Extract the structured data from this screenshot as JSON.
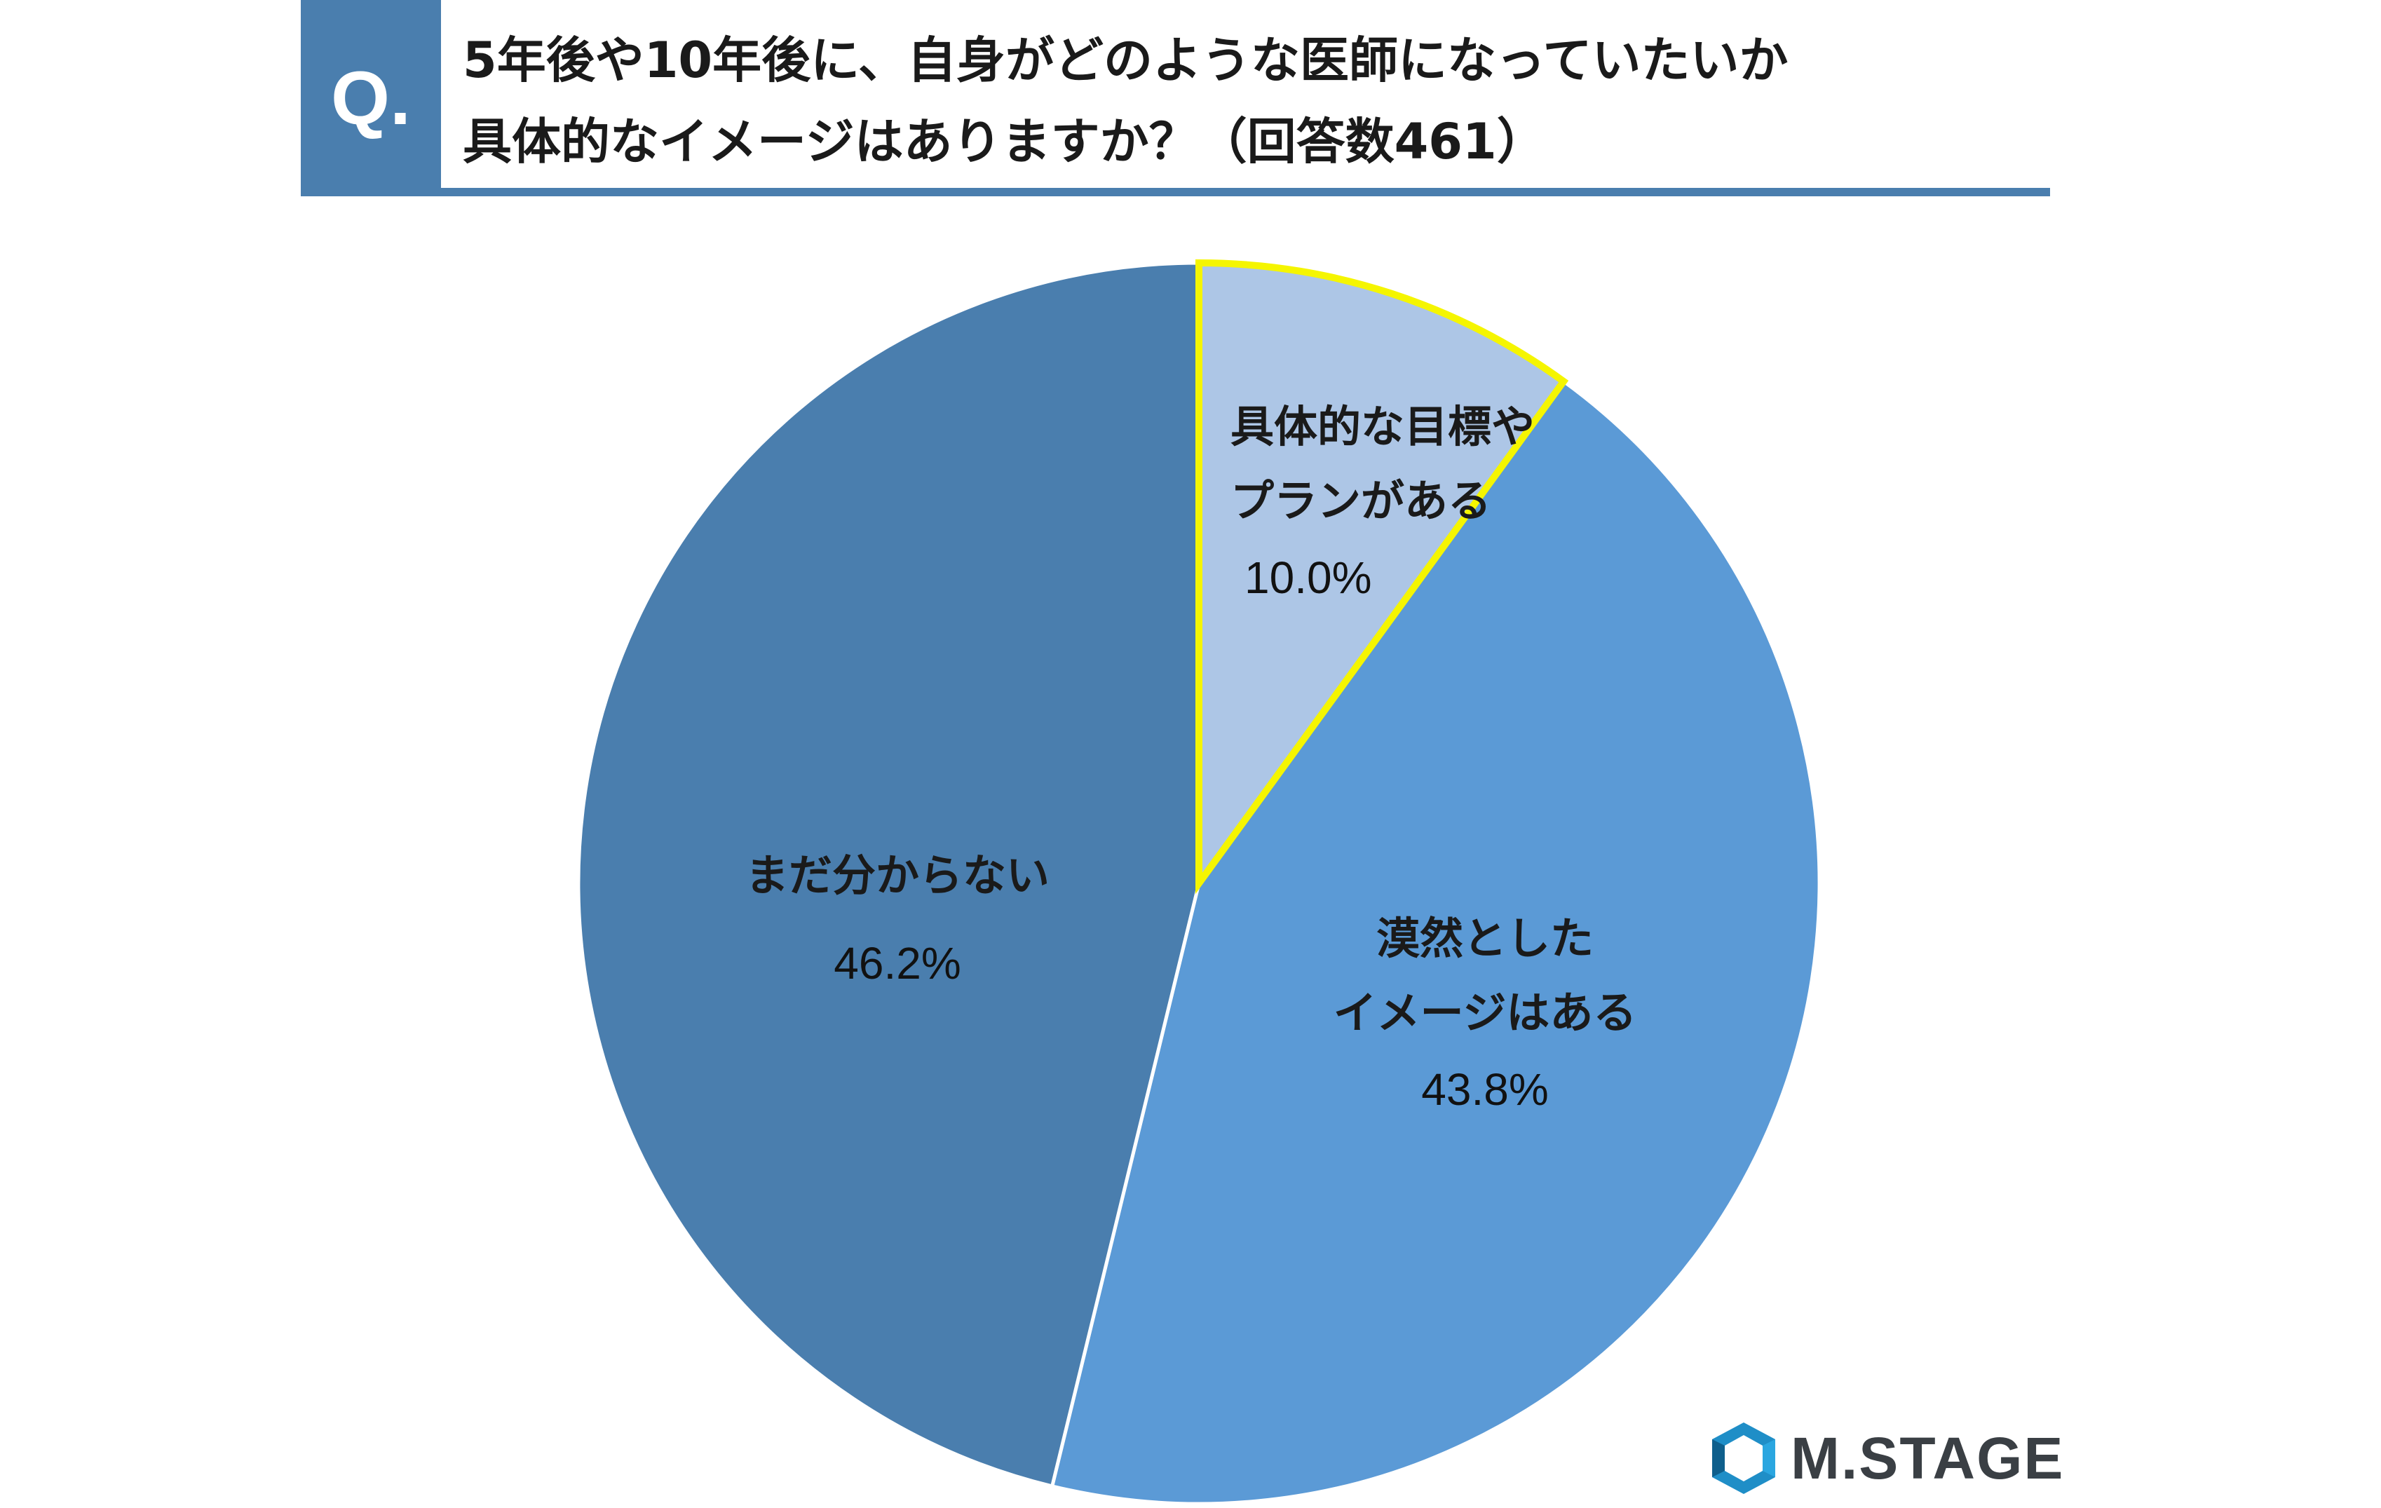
{
  "question": {
    "marker": "Q.",
    "title_line1": "5年後や10年後に、自身がどのような医師になっていたいか",
    "title_line2": "具体的なイメージはありますか？（回答数461）"
  },
  "chart_data": {
    "type": "pie",
    "title": "5年後や10年後に、自身がどのような医師になっていたいか 具体的なイメージはありますか？（回答数461）",
    "start": "12 o'clock",
    "direction": "clockwise",
    "slices": [
      {
        "label_lines": [
          "具体的な目標や",
          "プランがある"
        ],
        "value": 10.0,
        "value_label": "10.0%",
        "color": "#adc6e6",
        "stroke": "#f5f500"
      },
      {
        "label_lines": [
          "漠然とした",
          "イメージはある"
        ],
        "value": 43.8,
        "value_label": "43.8%",
        "color": "#5b9ad6",
        "stroke": "#ffffff"
      },
      {
        "label_lines": [
          "まだ分からない"
        ],
        "value": 46.2,
        "value_label": "46.2%",
        "color": "#4a7eae",
        "stroke": "#ffffff"
      }
    ]
  },
  "logo": {
    "text": "M.STAGE",
    "icon": "m-stage-logo-icon"
  }
}
